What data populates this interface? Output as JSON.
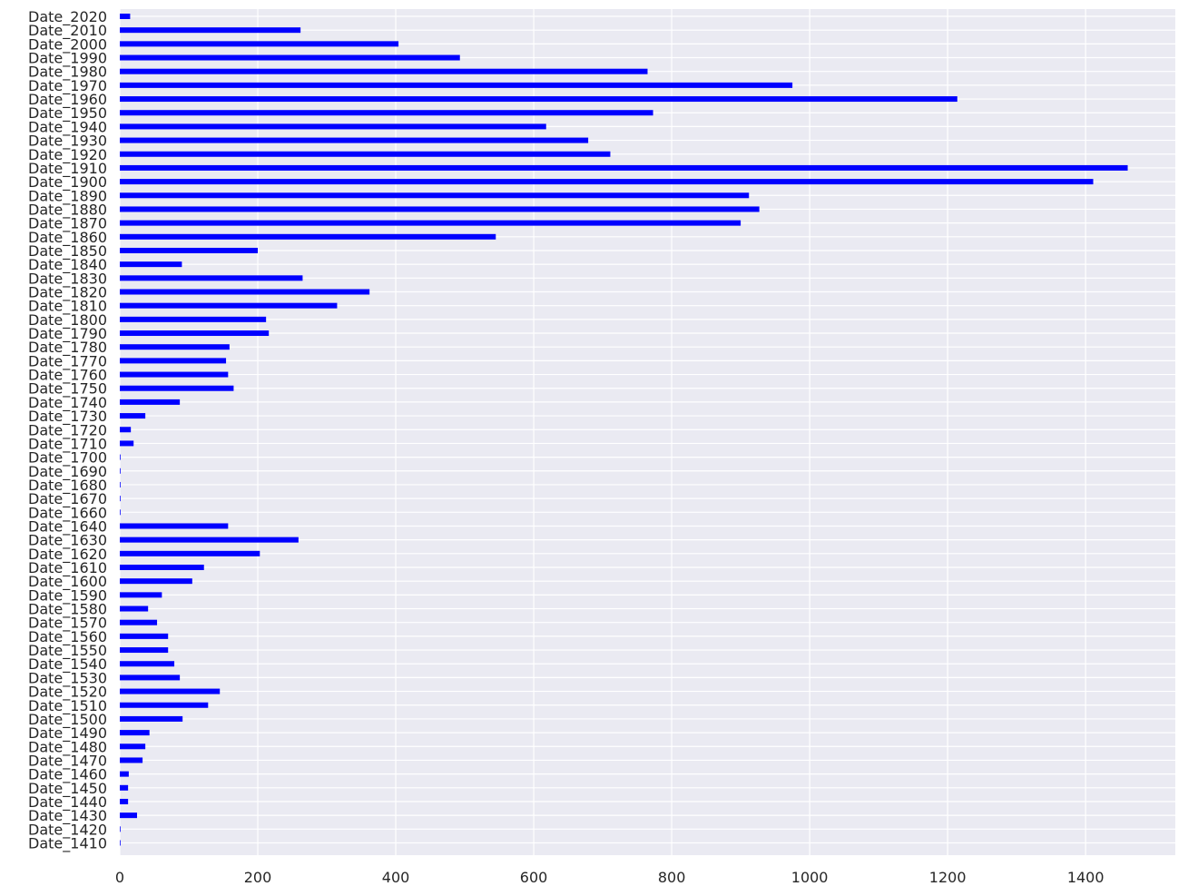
{
  "chart_data": {
    "type": "bar",
    "orientation": "horizontal",
    "title": "",
    "xlabel": "",
    "ylabel": "",
    "xlim": [
      0,
      1530
    ],
    "x_ticks": [
      0,
      200,
      400,
      600,
      800,
      1000,
      1200,
      1400
    ],
    "grid": true,
    "legend": "none",
    "bar_color": "#0000ff",
    "background_color": "#eaeaf2",
    "grid_color": "#ffffff",
    "categories": [
      "Date_2020",
      "Date_2010",
      "Date_2000",
      "Date_1990",
      "Date_1980",
      "Date_1970",
      "Date_1960",
      "Date_1950",
      "Date_1940",
      "Date_1930",
      "Date_1920",
      "Date_1910",
      "Date_1900",
      "Date_1890",
      "Date_1880",
      "Date_1870",
      "Date_1860",
      "Date_1850",
      "Date_1840",
      "Date_1830",
      "Date_1820",
      "Date_1810",
      "Date_1800",
      "Date_1790",
      "Date_1780",
      "Date_1770",
      "Date_1760",
      "Date_1750",
      "Date_1740",
      "Date_1730",
      "Date_1720",
      "Date_1710",
      "Date_1700",
      "Date_1690",
      "Date_1680",
      "Date_1670",
      "Date_1660",
      "Date_1640",
      "Date_1630",
      "Date_1620",
      "Date_1610",
      "Date_1600",
      "Date_1590",
      "Date_1580",
      "Date_1570",
      "Date_1560",
      "Date_1550",
      "Date_1540",
      "Date_1530",
      "Date_1520",
      "Date_1510",
      "Date_1500",
      "Date_1490",
      "Date_1480",
      "Date_1470",
      "Date_1460",
      "Date_1450",
      "Date_1440",
      "Date_1430",
      "Date_1420",
      "Date_1410"
    ],
    "values": [
      15,
      262,
      404,
      493,
      765,
      975,
      1214,
      773,
      618,
      679,
      711,
      1461,
      1411,
      912,
      927,
      900,
      545,
      200,
      90,
      265,
      362,
      315,
      212,
      216,
      159,
      154,
      157,
      165,
      87,
      37,
      16,
      20,
      1,
      1,
      1,
      1,
      1,
      157,
      259,
      203,
      122,
      105,
      61,
      41,
      54,
      70,
      70,
      79,
      87,
      145,
      128,
      91,
      43,
      37,
      33,
      13,
      12,
      12,
      25,
      1,
      1
    ]
  }
}
